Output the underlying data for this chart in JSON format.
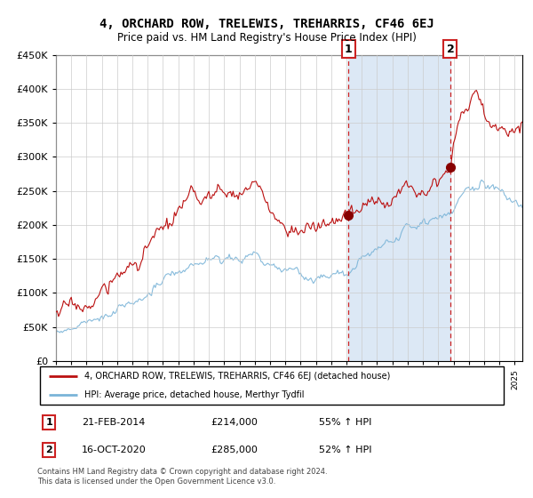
{
  "title": "4, ORCHARD ROW, TRELEWIS, TREHARRIS, CF46 6EJ",
  "subtitle": "Price paid vs. HM Land Registry's House Price Index (HPI)",
  "legend_line1": "4, ORCHARD ROW, TRELEWIS, TREHARRIS, CF46 6EJ (detached house)",
  "legend_line2": "HPI: Average price, detached house, Merthyr Tydfil",
  "footnote": "Contains HM Land Registry data © Crown copyright and database right 2024.\nThis data is licensed under the Open Government Licence v3.0.",
  "sale1_label": "1",
  "sale1_date": "21-FEB-2014",
  "sale1_price": "£214,000",
  "sale1_hpi": "55% ↑ HPI",
  "sale2_label": "2",
  "sale2_date": "16-OCT-2020",
  "sale2_price": "£285,000",
  "sale2_hpi": "52% ↑ HPI",
  "hpi_color": "#7ab4d8",
  "price_color": "#bb1111",
  "vline_color": "#cc2222",
  "marker1_x": 2014.13,
  "marker1_y": 214000,
  "marker2_x": 2020.79,
  "marker2_y": 285000,
  "ylim": [
    0,
    450000
  ],
  "xlim_start": 1995.0,
  "xlim_end": 2025.5,
  "span_color": "#dce8f5",
  "plot_bg": "#ffffff",
  "grid_color": "#cccccc"
}
